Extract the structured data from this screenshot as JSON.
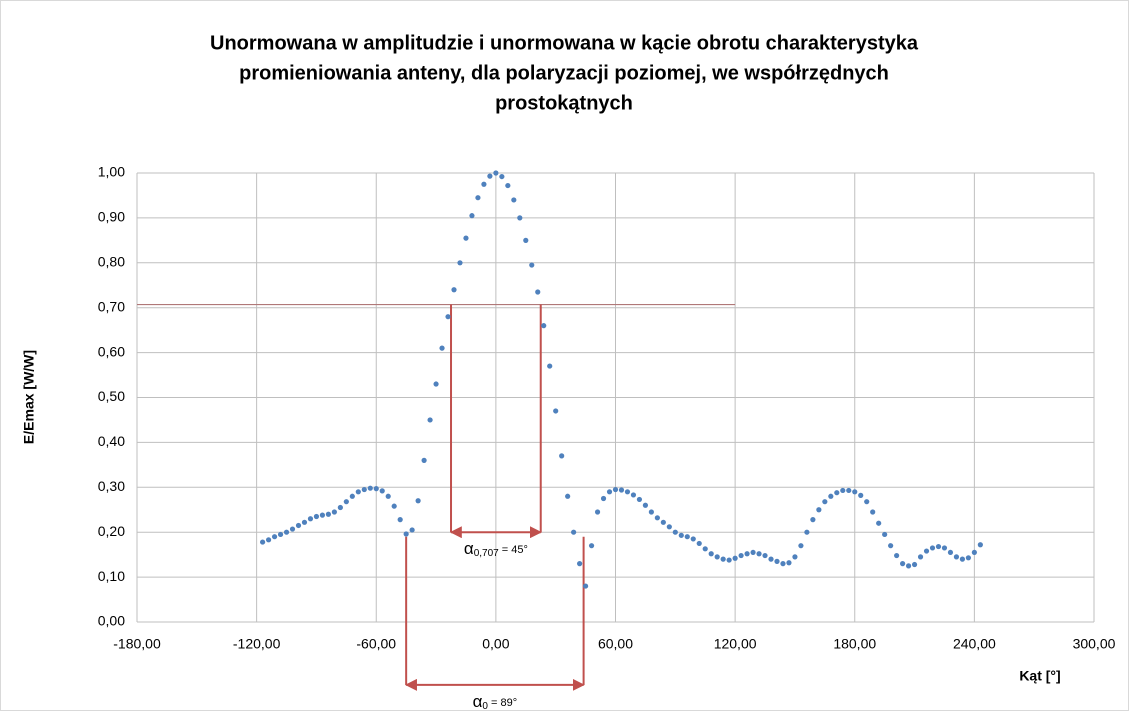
{
  "chart_data": {
    "type": "scatter",
    "title": [
      "Unormowana w amplitudzie i unormowana w kącie obrotu charakterystyka",
      "promieniowania anteny, dla polaryzacji poziomej, we współrzędnych",
      "prostokątnych"
    ],
    "xlabel": "Kąt [°]",
    "ylabel": "E/Emax [W/W]",
    "xlim": [
      -180,
      300
    ],
    "ylim": [
      0,
      1
    ],
    "xticks": [
      {
        "value": -180,
        "label": "-180,00"
      },
      {
        "value": -120,
        "label": "-120,00"
      },
      {
        "value": -60,
        "label": "-60,00"
      },
      {
        "value": 0,
        "label": "0,00"
      },
      {
        "value": 60,
        "label": "60,00"
      },
      {
        "value": 120,
        "label": "120,00"
      },
      {
        "value": 180,
        "label": "180,00"
      },
      {
        "value": 240,
        "label": "240,00"
      },
      {
        "value": 300,
        "label": "300,00"
      }
    ],
    "yticks": [
      {
        "value": 0,
        "label": "0,00"
      },
      {
        "value": 0.1,
        "label": "0,10"
      },
      {
        "value": 0.2,
        "label": "0,20"
      },
      {
        "value": 0.3,
        "label": "0,30"
      },
      {
        "value": 0.4,
        "label": "0,40"
      },
      {
        "value": 0.5,
        "label": "0,50"
      },
      {
        "value": 0.6,
        "label": "0,60"
      },
      {
        "value": 0.7,
        "label": "0,70"
      },
      {
        "value": 0.8,
        "label": "0,80"
      },
      {
        "value": 0.9,
        "label": "0,90"
      },
      {
        "value": 1,
        "label": "1,00"
      }
    ],
    "grid": true,
    "color": "#4f81bd",
    "x": [
      -117,
      -114,
      -111,
      -108,
      -105,
      -102,
      -99,
      -96,
      -93,
      -90,
      -87,
      -84,
      -81,
      -78,
      -75,
      -72,
      -69,
      -66,
      -63,
      -60,
      -57,
      -54,
      -51,
      -48,
      -45,
      -42,
      -39,
      -36,
      -33,
      -30,
      -27,
      -24,
      -21,
      -18,
      -15,
      -12,
      -9,
      -6,
      -3,
      0,
      3,
      6,
      9,
      12,
      15,
      18,
      21,
      24,
      27,
      30,
      33,
      36,
      39,
      42,
      45,
      48,
      51,
      54,
      57,
      60,
      63,
      66,
      69,
      72,
      75,
      78,
      81,
      84,
      87,
      90,
      93,
      96,
      99,
      102,
      105,
      108,
      111,
      114,
      117,
      120,
      123,
      126,
      129,
      132,
      135,
      138,
      141,
      144,
      147,
      150,
      153,
      156,
      159,
      162,
      165,
      168,
      171,
      174,
      177,
      180,
      183,
      186,
      189,
      192,
      195,
      198,
      201,
      204,
      207,
      210,
      213,
      216,
      219,
      222,
      225,
      228,
      231,
      234,
      237,
      240,
      243
    ],
    "values": [
      0.178,
      0.183,
      0.19,
      0.195,
      0.2,
      0.207,
      0.215,
      0.222,
      0.23,
      0.235,
      0.238,
      0.24,
      0.245,
      0.255,
      0.268,
      0.28,
      0.29,
      0.295,
      0.298,
      0.297,
      0.292,
      0.28,
      0.258,
      0.228,
      0.196,
      0.205,
      0.27,
      0.36,
      0.45,
      0.53,
      0.61,
      0.68,
      0.74,
      0.8,
      0.855,
      0.905,
      0.945,
      0.975,
      0.993,
      1.0,
      0.992,
      0.972,
      0.94,
      0.9,
      0.85,
      0.795,
      0.735,
      0.66,
      0.57,
      0.47,
      0.37,
      0.28,
      0.2,
      0.13,
      0.08,
      0.17,
      0.245,
      0.275,
      0.29,
      0.295,
      0.294,
      0.29,
      0.283,
      0.273,
      0.26,
      0.245,
      0.232,
      0.222,
      0.212,
      0.2,
      0.193,
      0.19,
      0.185,
      0.175,
      0.163,
      0.152,
      0.145,
      0.14,
      0.138,
      0.142,
      0.148,
      0.152,
      0.155,
      0.152,
      0.148,
      0.14,
      0.135,
      0.13,
      0.132,
      0.145,
      0.17,
      0.2,
      0.228,
      0.25,
      0.268,
      0.28,
      0.288,
      0.293,
      0.293,
      0.29,
      0.282,
      0.268,
      0.245,
      0.22,
      0.195,
      0.17,
      0.148,
      0.13,
      0.125,
      0.128,
      0.145,
      0.158,
      0.165,
      0.168,
      0.165,
      0.155,
      0.145,
      0.14,
      0.143,
      0.155,
      0.172
    ],
    "hline": {
      "y": 0.707,
      "x": [
        -180,
        120
      ],
      "color": "#b07878"
    },
    "annotations": [
      {
        "symbol": "α",
        "subscript": "0,707",
        "text": " = 45°",
        "x": [
          -22.5,
          22.5
        ],
        "y": 0.707,
        "arrow_y": 0.2,
        "color": "#c0504d"
      },
      {
        "symbol": "α",
        "subscript": "0",
        "text": " = 89°",
        "x": [
          -45,
          44
        ],
        "y": 0.19,
        "arrow_y": -0.14,
        "color": "#c0504d"
      }
    ]
  }
}
